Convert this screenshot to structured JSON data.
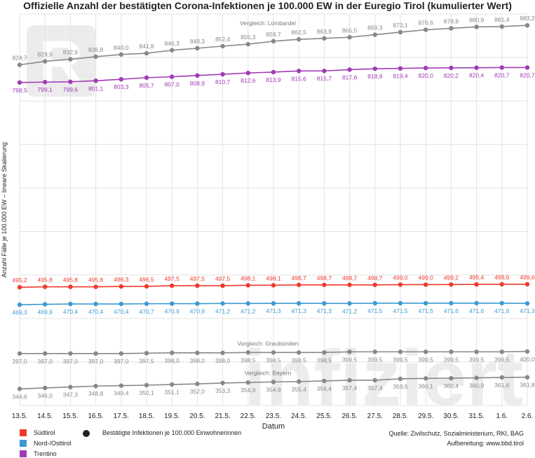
{
  "title": "Offizielle Anzahl der bestätigten Corona-Infektionen je 100.000 EW in der Euregio Tirol (kumulierter Wert)",
  "watermark": {
    "logo_letter": "R",
    "text": "infiziert"
  },
  "source": "Quelle: Zivilschutz, Sozialministerium, RKI, BAG",
  "credit": "Aufbereitung: www.bbd.tirol",
  "legend_marker_label": "Bestätigte Infektionen je 100.000 Einwohnerinnen",
  "colors": {
    "suedtirol": "#f03a2e",
    "nordost": "#3d9ad1",
    "trentino": "#a13bb5",
    "vergleich": "#888888",
    "grid": "#e3e3e3"
  },
  "chart_data": {
    "type": "line",
    "title": "Offizielle Anzahl der bestätigten Corona-Infektionen je 100.000 EW in der Euregio Tirol (kumulierter Wert)",
    "xlabel": "Datum",
    "ylabel": "Anzahl Fälle je 100.000 EW – lineare Skalierung",
    "ylim": [
      320,
      900
    ],
    "grid": true,
    "legend_position": "bottom-left",
    "categories": [
      "13.5.",
      "14.5.",
      "15.5.",
      "16.5.",
      "17.5.",
      "18.5.",
      "19.5.",
      "20.5.",
      "21.5.",
      "22.5.",
      "23.5.",
      "24.5.",
      "25.5.",
      "26.5.",
      "27.5.",
      "28.5.",
      "29.5.",
      "30.5.",
      "31.5.",
      "1.6.",
      "2.6."
    ],
    "series": [
      {
        "name": "Vergleich: Lombardei",
        "key": "lombardei",
        "color": "#888888",
        "labels": [
          "824,7",
          "829,9",
          "832,9",
          "836,8",
          "840,0",
          "841,8",
          "846,3",
          "849,3",
          "852,4",
          "855,3",
          "859,7",
          "862,5",
          "863,9",
          "865,5",
          "869,3",
          "873,1",
          "876,6",
          "878,8",
          "880,9",
          "881,4",
          "883,2"
        ],
        "values": [
          824.7,
          829.9,
          832.9,
          836.8,
          840.0,
          841.8,
          846.3,
          849.3,
          852.4,
          855.3,
          859.7,
          862.5,
          863.9,
          865.5,
          869.3,
          873.1,
          876.6,
          878.8,
          880.9,
          881.4,
          883.2
        ]
      },
      {
        "name": "Trentino",
        "key": "trentino",
        "color": "#a13bb5",
        "labels": [
          "798,5",
          "799,1",
          "799,6",
          "801,1",
          "803,3",
          "805,7",
          "807,0",
          "808,9",
          "810,7",
          "812,6",
          "813,9",
          "815,6",
          "815,7",
          "817,6",
          "818,9",
          "819,4",
          "820,0",
          "820,2",
          "820,4",
          "820,7",
          "820,7"
        ],
        "values": [
          798.5,
          799.1,
          799.6,
          801.1,
          803.3,
          805.7,
          807.0,
          808.9,
          810.7,
          812.6,
          813.9,
          815.6,
          815.7,
          817.6,
          818.9,
          819.4,
          820.0,
          820.2,
          820.4,
          820.7,
          820.7
        ]
      },
      {
        "name": "Südtirol",
        "key": "suedtirol",
        "color": "#f03a2e",
        "labels": [
          "495,2",
          "495,8",
          "495,8",
          "495,8",
          "496,3",
          "496,5",
          "497,5",
          "497,5",
          "497,5",
          "498,1",
          "498,1",
          "498,7",
          "498,7",
          "498,7",
          "498,7",
          "499,0",
          "499,0",
          "499,2",
          "499,4",
          "499,6",
          "499,6"
        ],
        "values": [
          495.2,
          495.8,
          495.8,
          495.8,
          496.3,
          496.5,
          497.5,
          497.5,
          497.5,
          498.1,
          498.1,
          498.7,
          498.7,
          498.7,
          498.7,
          499.0,
          499.0,
          499.2,
          499.4,
          499.6,
          499.6
        ]
      },
      {
        "name": "Nord-/Osttirol",
        "key": "nordost",
        "color": "#3d9ad1",
        "labels": [
          "469,3",
          "469,9",
          "470,4",
          "470,4",
          "470,4",
          "470,7",
          "470,9",
          "470,9",
          "471,2",
          "471,2",
          "471,3",
          "471,3",
          "471,3",
          "471,2",
          "471,5",
          "471,5",
          "471,5",
          "471,6",
          "471,6",
          "471,6",
          "471,3"
        ],
        "values": [
          469.3,
          469.9,
          470.4,
          470.4,
          470.4,
          470.7,
          470.9,
          470.9,
          471.2,
          471.2,
          471.3,
          471.3,
          471.3,
          471.2,
          471.5,
          471.5,
          471.5,
          471.6,
          471.6,
          471.6,
          471.3
        ]
      },
      {
        "name": "Vergleich: Graubünden",
        "key": "graubuenden",
        "color": "#888888",
        "labels": [
          "397,0",
          "397,0",
          "397,0",
          "397,0",
          "397,0",
          "397,5",
          "398,0",
          "398,0",
          "398,0",
          "398,5",
          "398,5",
          "398,5",
          "398,5",
          "399,5",
          "399,5",
          "399,5",
          "399,5",
          "399,5",
          "399,5",
          "399,5",
          "400,0"
        ],
        "values": [
          397.0,
          397.0,
          397.0,
          397.0,
          397.0,
          397.5,
          398.0,
          398.0,
          398.0,
          398.5,
          398.5,
          398.5,
          398.5,
          399.5,
          399.5,
          399.5,
          399.5,
          399.5,
          399.5,
          399.5,
          400.0
        ]
      },
      {
        "name": "Vergleich: Bayern",
        "key": "bayern",
        "color": "#888888",
        "labels": [
          "344,6",
          "346,0",
          "347,3",
          "348,8",
          "349,4",
          "350,1",
          "351,1",
          "352,0",
          "353,3",
          "354,0",
          "354,9",
          "355,4",
          "356,4",
          "357,4",
          "357,4",
          "359,5",
          "360,1",
          "360,4",
          "360,9",
          "361,6",
          "361,8"
        ],
        "values": [
          344.6,
          346.0,
          347.3,
          348.8,
          349.4,
          350.1,
          351.1,
          352.0,
          353.3,
          354.0,
          354.9,
          355.4,
          356.4,
          357.4,
          357.4,
          359.5,
          360.1,
          360.4,
          360.9,
          361.6,
          361.8
        ]
      }
    ],
    "legend": [
      {
        "label": "Südtirol",
        "color": "#f03a2e"
      },
      {
        "label": "Nord-/Osttirol",
        "color": "#3d9ad1"
      },
      {
        "label": "Trentino",
        "color": "#a13bb5"
      }
    ]
  }
}
